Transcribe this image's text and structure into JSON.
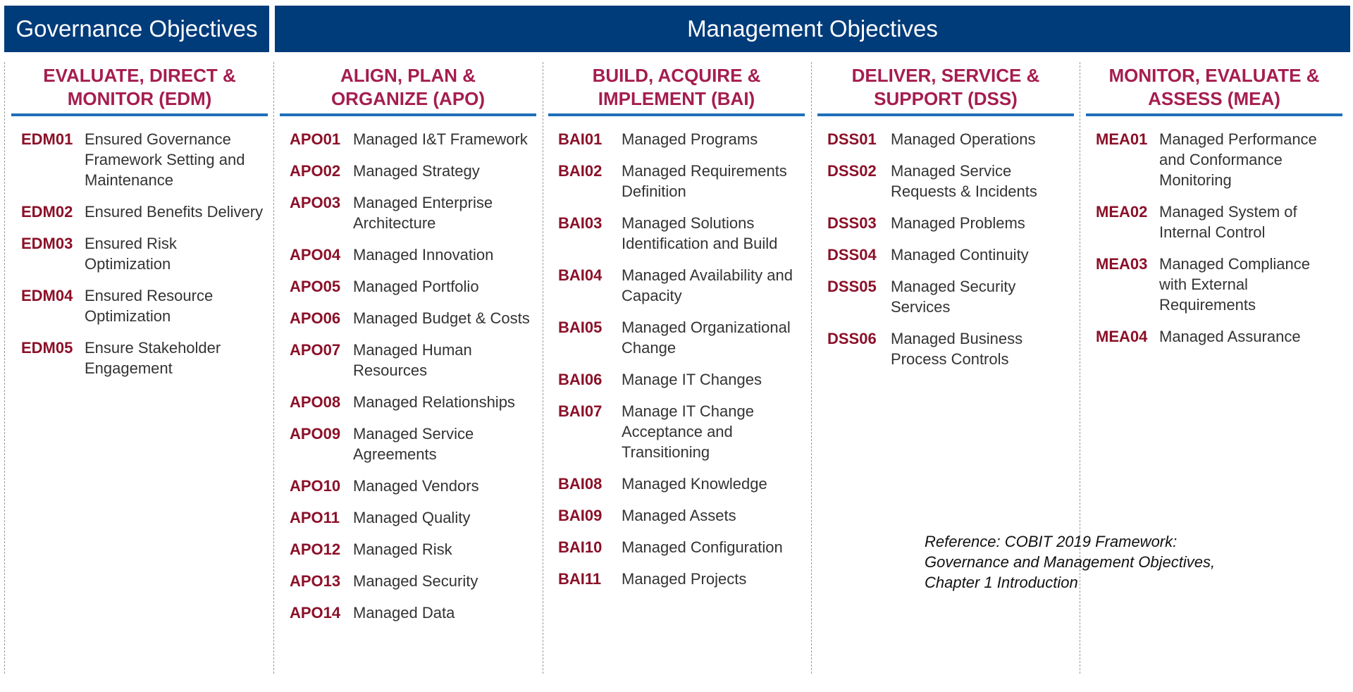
{
  "banners": {
    "governance": "Governance Objectives",
    "management": "Management Objectives"
  },
  "columns": [
    {
      "title": "EVALUATE, DIRECT &\nMONITOR (EDM)",
      "items": [
        {
          "code": "EDM01",
          "label": "Ensured Governance Framework Setting and Maintenance"
        },
        {
          "code": "EDM02",
          "label": "Ensured Benefits Delivery"
        },
        {
          "code": "EDM03",
          "label": "Ensured Risk Optimization"
        },
        {
          "code": "EDM04",
          "label": "Ensured Resource Optimization"
        },
        {
          "code": "EDM05",
          "label": "Ensure Stakeholder Engagement"
        }
      ]
    },
    {
      "title": "ALIGN, PLAN &\nORGANIZE (APO)",
      "items": [
        {
          "code": "APO01",
          "label": "Managed I&T Framework"
        },
        {
          "code": "APO02",
          "label": "Managed Strategy"
        },
        {
          "code": "APO03",
          "label": "Managed Enterprise Architecture"
        },
        {
          "code": "APO04",
          "label": "Managed Innovation"
        },
        {
          "code": "APO05",
          "label": "Managed Portfolio"
        },
        {
          "code": "APO06",
          "label": "Managed Budget & Costs"
        },
        {
          "code": "APO07",
          "label": "Managed Human Resources"
        },
        {
          "code": "APO08",
          "label": "Managed Relationships"
        },
        {
          "code": "APO09",
          "label": "Managed Service Agreements"
        },
        {
          "code": "APO10",
          "label": "Managed Vendors"
        },
        {
          "code": "APO11",
          "label": "Managed Quality"
        },
        {
          "code": "APO12",
          "label": "Managed Risk"
        },
        {
          "code": "APO13",
          "label": "Managed Security"
        },
        {
          "code": "APO14",
          "label": "Managed Data"
        }
      ]
    },
    {
      "title": "BUILD, ACQUIRE &\nIMPLEMENT (BAI)",
      "items": [
        {
          "code": "BAI01",
          "label": "Managed Programs"
        },
        {
          "code": "BAI02",
          "label": "Managed Requirements Definition"
        },
        {
          "code": "BAI03",
          "label": "Managed Solutions Identification and Build"
        },
        {
          "code": "BAI04",
          "label": "Managed Availability and Capacity"
        },
        {
          "code": "BAI05",
          "label": "Managed Organizational Change"
        },
        {
          "code": "BAI06",
          "label": "Manage IT Changes"
        },
        {
          "code": "BAI07",
          "label": "Manage IT Change Acceptance and Transitioning"
        },
        {
          "code": "BAI08",
          "label": "Managed Knowledge"
        },
        {
          "code": "BAI09",
          "label": "Managed Assets"
        },
        {
          "code": "BAI10",
          "label": "Managed Configuration"
        },
        {
          "code": "BAI11",
          "label": "Managed Projects"
        }
      ]
    },
    {
      "title": "DELIVER, SERVICE &\nSUPPORT (DSS)",
      "items": [
        {
          "code": "DSS01",
          "label": "Managed Operations"
        },
        {
          "code": "DSS02",
          "label": "Managed Service Requests & Incidents"
        },
        {
          "code": "DSS03",
          "label": "Managed Problems"
        },
        {
          "code": "DSS04",
          "label": "Managed Continuity"
        },
        {
          "code": "DSS05",
          "label": "Managed Security Services"
        },
        {
          "code": "DSS06",
          "label": "Managed Business Process Controls"
        }
      ]
    },
    {
      "title": "MONITOR, EVALUATE &\nASSESS (MEA)",
      "items": [
        {
          "code": "MEA01",
          "label": "Managed Performance and Conformance Monitoring"
        },
        {
          "code": "MEA02",
          "label": "Managed System of Internal Control"
        },
        {
          "code": "MEA03",
          "label": "Managed Compliance with External Requirements"
        },
        {
          "code": "MEA04",
          "label": "Managed Assurance"
        }
      ]
    }
  ],
  "reference": "Reference:  COBIT 2019 Framework:\nGovernance and Management Objectives,\nChapter 1 Introduction",
  "colors": {
    "banner": "#003b7a",
    "heading": "#a51d4f",
    "code": "#8b1028",
    "rule": "#1f6fba"
  }
}
